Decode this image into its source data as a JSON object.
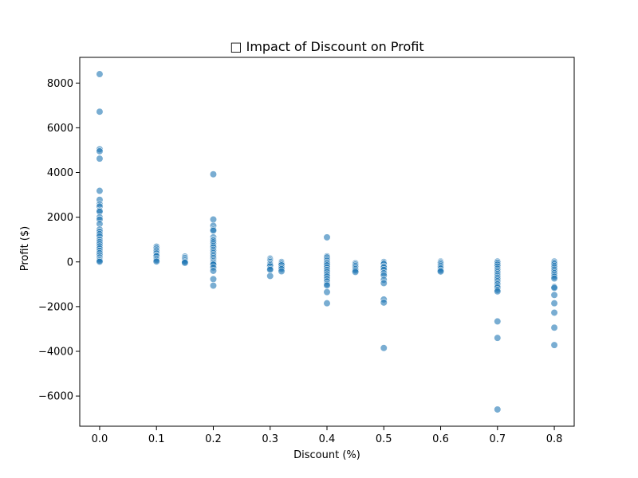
{
  "chart_data": {
    "type": "scatter",
    "title": "□ Impact of Discount on Profit",
    "xlabel": "Discount (%)",
    "ylabel": "Profit ($)",
    "xlim": [
      -0.035,
      0.835
    ],
    "ylim": [
      -7350,
      9150
    ],
    "xticks": [
      0.0,
      0.1,
      0.2,
      0.3,
      0.4,
      0.5,
      0.6,
      0.7,
      0.8
    ],
    "xtick_labels": [
      "0.0",
      "0.1",
      "0.2",
      "0.3",
      "0.4",
      "0.5",
      "0.6",
      "0.7",
      "0.8"
    ],
    "yticks": [
      -6000,
      -4000,
      -2000,
      0,
      2000,
      4000,
      6000,
      8000
    ],
    "ytick_labels": [
      "−6000",
      "−4000",
      "−2000",
      "0",
      "2000",
      "4000",
      "6000",
      "8000"
    ],
    "grid": false,
    "point_color": "#1f77b4",
    "point_alpha": 0.6,
    "points": [
      [
        0.0,
        8400
      ],
      [
        0.0,
        6720
      ],
      [
        0.0,
        5040
      ],
      [
        0.0,
        4950
      ],
      [
        0.0,
        4620
      ],
      [
        0.0,
        3180
      ],
      [
        0.0,
        2780
      ],
      [
        0.0,
        2580
      ],
      [
        0.0,
        2480
      ],
      [
        0.0,
        2300
      ],
      [
        0.0,
        2250
      ],
      [
        0.0,
        2000
      ],
      [
        0.0,
        1900
      ],
      [
        0.0,
        1700
      ],
      [
        0.0,
        1450
      ],
      [
        0.0,
        1350
      ],
      [
        0.0,
        1250
      ],
      [
        0.0,
        1150
      ],
      [
        0.0,
        1000
      ],
      [
        0.0,
        900
      ],
      [
        0.0,
        800
      ],
      [
        0.0,
        700
      ],
      [
        0.0,
        600
      ],
      [
        0.0,
        500
      ],
      [
        0.0,
        400
      ],
      [
        0.0,
        300
      ],
      [
        0.0,
        200
      ],
      [
        0.0,
        120
      ],
      [
        0.0,
        60
      ],
      [
        0.0,
        10
      ],
      [
        0.1,
        680
      ],
      [
        0.1,
        600
      ],
      [
        0.1,
        520
      ],
      [
        0.1,
        450
      ],
      [
        0.1,
        380
      ],
      [
        0.1,
        300
      ],
      [
        0.1,
        250
      ],
      [
        0.1,
        150
      ],
      [
        0.1,
        80
      ],
      [
        0.1,
        20
      ],
      [
        0.15,
        240
      ],
      [
        0.15,
        180
      ],
      [
        0.15,
        120
      ],
      [
        0.15,
        60
      ],
      [
        0.15,
        0
      ],
      [
        0.15,
        -40
      ],
      [
        0.2,
        3920
      ],
      [
        0.2,
        1900
      ],
      [
        0.2,
        1620
      ],
      [
        0.2,
        1450
      ],
      [
        0.2,
        1400
      ],
      [
        0.2,
        1100
      ],
      [
        0.2,
        1000
      ],
      [
        0.2,
        950
      ],
      [
        0.2,
        880
      ],
      [
        0.2,
        800
      ],
      [
        0.2,
        720
      ],
      [
        0.2,
        650
      ],
      [
        0.2,
        550
      ],
      [
        0.2,
        480
      ],
      [
        0.2,
        400
      ],
      [
        0.2,
        320
      ],
      [
        0.2,
        250
      ],
      [
        0.2,
        180
      ],
      [
        0.2,
        100
      ],
      [
        0.2,
        30
      ],
      [
        0.2,
        -20
      ],
      [
        0.2,
        -80
      ],
      [
        0.2,
        -120
      ],
      [
        0.2,
        -250
      ],
      [
        0.2,
        -400
      ],
      [
        0.2,
        -770
      ],
      [
        0.2,
        -1060
      ],
      [
        0.3,
        150
      ],
      [
        0.3,
        100
      ],
      [
        0.3,
        50
      ],
      [
        0.3,
        0
      ],
      [
        0.3,
        -60
      ],
      [
        0.3,
        -100
      ],
      [
        0.3,
        -150
      ],
      [
        0.3,
        -200
      ],
      [
        0.3,
        -300
      ],
      [
        0.3,
        -350
      ],
      [
        0.3,
        -630
      ],
      [
        0.32,
        0
      ],
      [
        0.32,
        -50
      ],
      [
        0.32,
        -100
      ],
      [
        0.32,
        -150
      ],
      [
        0.32,
        -250
      ],
      [
        0.32,
        -320
      ],
      [
        0.32,
        -420
      ],
      [
        0.4,
        1100
      ],
      [
        0.4,
        250
      ],
      [
        0.4,
        200
      ],
      [
        0.4,
        120
      ],
      [
        0.4,
        50
      ],
      [
        0.4,
        -20
      ],
      [
        0.4,
        -80
      ],
      [
        0.4,
        -150
      ],
      [
        0.4,
        -250
      ],
      [
        0.4,
        -350
      ],
      [
        0.4,
        -450
      ],
      [
        0.4,
        -550
      ],
      [
        0.4,
        -650
      ],
      [
        0.4,
        -760
      ],
      [
        0.4,
        -870
      ],
      [
        0.4,
        -990
      ],
      [
        0.4,
        -1050
      ],
      [
        0.4,
        -1350
      ],
      [
        0.4,
        -1850
      ],
      [
        0.45,
        -60
      ],
      [
        0.45,
        -120
      ],
      [
        0.45,
        -180
      ],
      [
        0.45,
        -250
      ],
      [
        0.45,
        -320
      ],
      [
        0.45,
        -380
      ],
      [
        0.45,
        -450
      ],
      [
        0.5,
        0
      ],
      [
        0.5,
        -50
      ],
      [
        0.5,
        -100
      ],
      [
        0.5,
        -200
      ],
      [
        0.5,
        -250
      ],
      [
        0.5,
        -350
      ],
      [
        0.5,
        -500
      ],
      [
        0.5,
        -600
      ],
      [
        0.5,
        -800
      ],
      [
        0.5,
        -950
      ],
      [
        0.5,
        -1680
      ],
      [
        0.5,
        -1820
      ],
      [
        0.5,
        -3850
      ],
      [
        0.6,
        20
      ],
      [
        0.6,
        -20
      ],
      [
        0.6,
        -60
      ],
      [
        0.6,
        -120
      ],
      [
        0.6,
        -180
      ],
      [
        0.6,
        -240
      ],
      [
        0.6,
        -300
      ],
      [
        0.6,
        -380
      ],
      [
        0.6,
        -430
      ],
      [
        0.7,
        20
      ],
      [
        0.7,
        -40
      ],
      [
        0.7,
        -120
      ],
      [
        0.7,
        -200
      ],
      [
        0.7,
        -300
      ],
      [
        0.7,
        -380
      ],
      [
        0.7,
        -460
      ],
      [
        0.7,
        -540
      ],
      [
        0.7,
        -620
      ],
      [
        0.7,
        -700
      ],
      [
        0.7,
        -780
      ],
      [
        0.7,
        -860
      ],
      [
        0.7,
        -940
      ],
      [
        0.7,
        -1000
      ],
      [
        0.7,
        -1080
      ],
      [
        0.7,
        -1150
      ],
      [
        0.7,
        -1250
      ],
      [
        0.7,
        -1320
      ],
      [
        0.7,
        -2660
      ],
      [
        0.7,
        -3400
      ],
      [
        0.7,
        -6600
      ],
      [
        0.8,
        20
      ],
      [
        0.8,
        -40
      ],
      [
        0.8,
        -100
      ],
      [
        0.8,
        -180
      ],
      [
        0.8,
        -260
      ],
      [
        0.8,
        -340
      ],
      [
        0.8,
        -420
      ],
      [
        0.8,
        -500
      ],
      [
        0.8,
        -580
      ],
      [
        0.8,
        -660
      ],
      [
        0.8,
        -740
      ],
      [
        0.8,
        -1120
      ],
      [
        0.8,
        -1160
      ],
      [
        0.8,
        -1480
      ],
      [
        0.8,
        -1850
      ],
      [
        0.8,
        -2270
      ],
      [
        0.8,
        -2940
      ],
      [
        0.8,
        -3720
      ]
    ]
  }
}
